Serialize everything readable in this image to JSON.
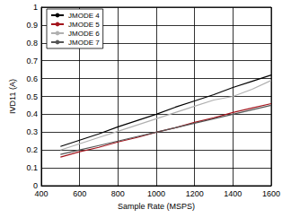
{
  "chart_data": {
    "type": "line",
    "x_label": "Sample Rate (MSPS)",
    "y_label": "IVD11 (A)",
    "xlim": [
      400,
      1600
    ],
    "xticks": [
      400,
      600,
      800,
      1000,
      1200,
      1400,
      1600
    ],
    "ylim": [
      0,
      1
    ],
    "yticks": [
      0,
      0.1,
      0.2,
      0.3,
      0.4,
      0.5,
      0.6,
      0.7,
      0.8,
      0.9,
      1
    ],
    "grid": true,
    "legend": "upper left",
    "x": [
      500,
      600,
      700,
      800,
      900,
      1000,
      1100,
      1200,
      1300,
      1400,
      1500,
      1600
    ],
    "series": [
      {
        "name": "JMODE 4",
        "color": "#000000",
        "values": [
          0.22,
          0.255,
          0.29,
          0.33,
          0.365,
          0.4,
          0.44,
          0.475,
          0.51,
          0.55,
          0.585,
          0.62
        ]
      },
      {
        "name": "JMODE 5",
        "color": "#a3141c",
        "values": [
          0.16,
          0.19,
          0.215,
          0.245,
          0.27,
          0.3,
          0.325,
          0.355,
          0.38,
          0.41,
          0.435,
          0.46
        ]
      },
      {
        "name": "JMODE 6",
        "color": "#b0b0b0",
        "values": [
          0.2,
          0.235,
          0.27,
          0.305,
          0.34,
          0.375,
          0.41,
          0.445,
          0.48,
          0.5,
          0.54,
          0.59
        ]
      },
      {
        "name": "JMODE 7",
        "color": "#555555",
        "values": [
          0.175,
          0.2,
          0.225,
          0.25,
          0.275,
          0.3,
          0.325,
          0.35,
          0.375,
          0.4,
          0.425,
          0.45
        ]
      }
    ]
  }
}
